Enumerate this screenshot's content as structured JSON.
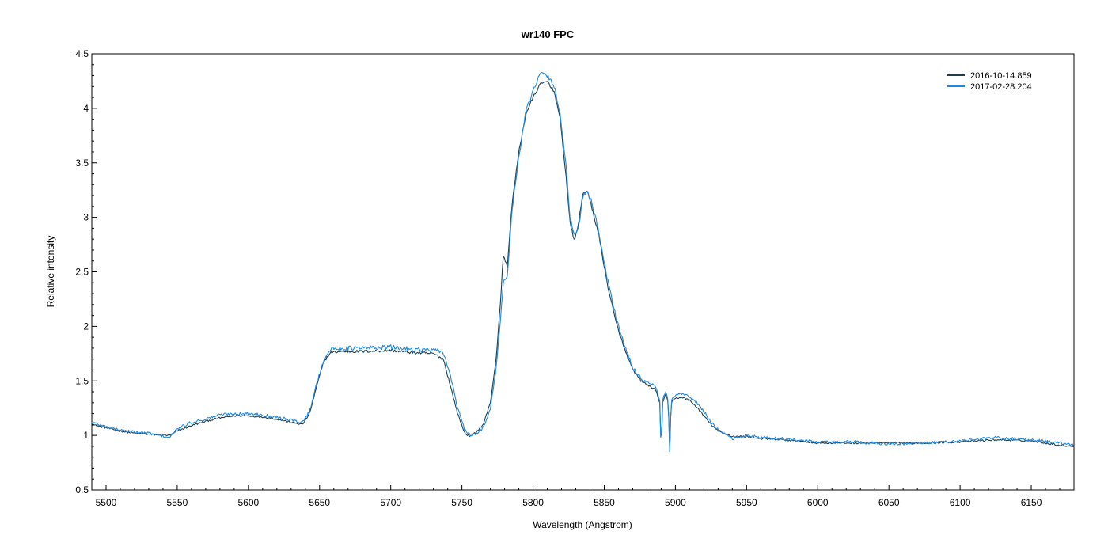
{
  "chart_data": {
    "type": "line",
    "title": "wr140   FPC",
    "xlabel": "Wavelength (Angstrom)",
    "ylabel": "Relative intensity",
    "xlim": [
      5490,
      6180
    ],
    "ylim": [
      0.5,
      4.5
    ],
    "x_ticks": [
      5500,
      5550,
      5600,
      5650,
      5700,
      5750,
      5800,
      5850,
      5900,
      5950,
      6000,
      6050,
      6100,
      6150
    ],
    "x_tick_labels": [
      "5500",
      "5550",
      "5600",
      "5650",
      "5700",
      "5750",
      "5800",
      "5850",
      "5900",
      "5950",
      "6000",
      "6050",
      "6100",
      "6150"
    ],
    "y_ticks": [
      0.5,
      1,
      1.5,
      2,
      2.5,
      3,
      3.5,
      4,
      4.5
    ],
    "y_tick_labels": [
      "0.5",
      "1",
      "1.5",
      "2",
      "2.5",
      "3",
      "3.5",
      "4",
      "4.5"
    ],
    "grid": false,
    "legend_position": "top-right",
    "series": [
      {
        "name": "2016-10-14.859",
        "color": "#1f3f4f",
        "points": [
          [
            5490,
            1.1
          ],
          [
            5500,
            1.07
          ],
          [
            5510,
            1.04
          ],
          [
            5520,
            1.02
          ],
          [
            5530,
            1.01
          ],
          [
            5545,
            1.0
          ],
          [
            5550,
            1.04
          ],
          [
            5560,
            1.09
          ],
          [
            5570,
            1.13
          ],
          [
            5580,
            1.16
          ],
          [
            5590,
            1.18
          ],
          [
            5600,
            1.18
          ],
          [
            5610,
            1.17
          ],
          [
            5620,
            1.15
          ],
          [
            5630,
            1.12
          ],
          [
            5638,
            1.1
          ],
          [
            5643,
            1.2
          ],
          [
            5648,
            1.45
          ],
          [
            5653,
            1.68
          ],
          [
            5658,
            1.76
          ],
          [
            5665,
            1.77
          ],
          [
            5680,
            1.77
          ],
          [
            5700,
            1.78
          ],
          [
            5715,
            1.76
          ],
          [
            5730,
            1.75
          ],
          [
            5737,
            1.7
          ],
          [
            5742,
            1.45
          ],
          [
            5747,
            1.2
          ],
          [
            5752,
            1.02
          ],
          [
            5756,
            0.99
          ],
          [
            5760,
            1.03
          ],
          [
            5765,
            1.1
          ],
          [
            5770,
            1.3
          ],
          [
            5774,
            1.7
          ],
          [
            5777,
            2.2
          ],
          [
            5779,
            2.65
          ],
          [
            5782,
            2.55
          ],
          [
            5785,
            3.1
          ],
          [
            5790,
            3.6
          ],
          [
            5795,
            3.95
          ],
          [
            5800,
            4.1
          ],
          [
            5805,
            4.22
          ],
          [
            5810,
            4.25
          ],
          [
            5815,
            4.15
          ],
          [
            5819,
            3.9
          ],
          [
            5823,
            3.4
          ],
          [
            5826,
            2.95
          ],
          [
            5829,
            2.78
          ],
          [
            5832,
            2.95
          ],
          [
            5835,
            3.22
          ],
          [
            5838,
            3.25
          ],
          [
            5841,
            3.1
          ],
          [
            5846,
            2.85
          ],
          [
            5852,
            2.4
          ],
          [
            5858,
            2.05
          ],
          [
            5864,
            1.8
          ],
          [
            5870,
            1.6
          ],
          [
            5876,
            1.5
          ],
          [
            5882,
            1.45
          ],
          [
            5886,
            1.42
          ],
          [
            5889,
            1.3
          ],
          [
            5890,
            0.85
          ],
          [
            5891,
            1.3
          ],
          [
            5893,
            1.38
          ],
          [
            5895,
            1.3
          ],
          [
            5896,
            0.85
          ],
          [
            5897,
            1.3
          ],
          [
            5900,
            1.34
          ],
          [
            5905,
            1.35
          ],
          [
            5910,
            1.32
          ],
          [
            5915,
            1.26
          ],
          [
            5920,
            1.18
          ],
          [
            5925,
            1.1
          ],
          [
            5930,
            1.04
          ],
          [
            5940,
            0.99
          ],
          [
            5950,
            0.99
          ],
          [
            5960,
            0.97
          ],
          [
            5975,
            0.96
          ],
          [
            6000,
            0.93
          ],
          [
            6025,
            0.93
          ],
          [
            6050,
            0.93
          ],
          [
            6075,
            0.93
          ],
          [
            6100,
            0.94
          ],
          [
            6125,
            0.96
          ],
          [
            6150,
            0.95
          ],
          [
            6170,
            0.91
          ],
          [
            6180,
            0.9
          ]
        ]
      },
      {
        "name": "2017-02-28.204",
        "color": "#1e88e5",
        "points": [
          [
            5490,
            1.12
          ],
          [
            5500,
            1.08
          ],
          [
            5510,
            1.05
          ],
          [
            5520,
            1.03
          ],
          [
            5530,
            1.02
          ],
          [
            5545,
            0.98
          ],
          [
            5550,
            1.06
          ],
          [
            5560,
            1.12
          ],
          [
            5570,
            1.15
          ],
          [
            5580,
            1.19
          ],
          [
            5590,
            1.2
          ],
          [
            5600,
            1.2
          ],
          [
            5610,
            1.19
          ],
          [
            5620,
            1.17
          ],
          [
            5630,
            1.14
          ],
          [
            5638,
            1.12
          ],
          [
            5643,
            1.22
          ],
          [
            5648,
            1.48
          ],
          [
            5653,
            1.7
          ],
          [
            5658,
            1.79
          ],
          [
            5665,
            1.8
          ],
          [
            5680,
            1.8
          ],
          [
            5700,
            1.81
          ],
          [
            5715,
            1.79
          ],
          [
            5730,
            1.78
          ],
          [
            5737,
            1.76
          ],
          [
            5742,
            1.55
          ],
          [
            5747,
            1.25
          ],
          [
            5752,
            1.05
          ],
          [
            5756,
            1.0
          ],
          [
            5760,
            1.01
          ],
          [
            5765,
            1.07
          ],
          [
            5770,
            1.25
          ],
          [
            5774,
            1.6
          ],
          [
            5777,
            2.05
          ],
          [
            5779,
            2.4
          ],
          [
            5782,
            2.45
          ],
          [
            5785,
            3.05
          ],
          [
            5790,
            3.55
          ],
          [
            5795,
            3.98
          ],
          [
            5800,
            4.15
          ],
          [
            5805,
            4.32
          ],
          [
            5810,
            4.3
          ],
          [
            5815,
            4.2
          ],
          [
            5819,
            3.95
          ],
          [
            5823,
            3.5
          ],
          [
            5826,
            3.0
          ],
          [
            5829,
            2.82
          ],
          [
            5832,
            2.9
          ],
          [
            5835,
            3.2
          ],
          [
            5838,
            3.24
          ],
          [
            5841,
            3.15
          ],
          [
            5846,
            2.88
          ],
          [
            5852,
            2.45
          ],
          [
            5858,
            2.1
          ],
          [
            5864,
            1.83
          ],
          [
            5870,
            1.62
          ],
          [
            5876,
            1.52
          ],
          [
            5882,
            1.48
          ],
          [
            5886,
            1.45
          ],
          [
            5889,
            1.32
          ],
          [
            5890,
            0.85
          ],
          [
            5891,
            1.32
          ],
          [
            5893,
            1.4
          ],
          [
            5895,
            1.32
          ],
          [
            5896,
            0.85
          ],
          [
            5897,
            1.32
          ],
          [
            5900,
            1.37
          ],
          [
            5905,
            1.38
          ],
          [
            5910,
            1.35
          ],
          [
            5915,
            1.3
          ],
          [
            5920,
            1.22
          ],
          [
            5925,
            1.12
          ],
          [
            5930,
            1.05
          ],
          [
            5940,
            0.97
          ],
          [
            5950,
            1.0
          ],
          [
            5960,
            0.98
          ],
          [
            5975,
            0.97
          ],
          [
            6000,
            0.94
          ],
          [
            6025,
            0.94
          ],
          [
            6050,
            0.92
          ],
          [
            6075,
            0.93
          ],
          [
            6100,
            0.95
          ],
          [
            6125,
            0.98
          ],
          [
            6150,
            0.96
          ],
          [
            6170,
            0.93
          ],
          [
            6180,
            0.91
          ]
        ]
      }
    ]
  }
}
